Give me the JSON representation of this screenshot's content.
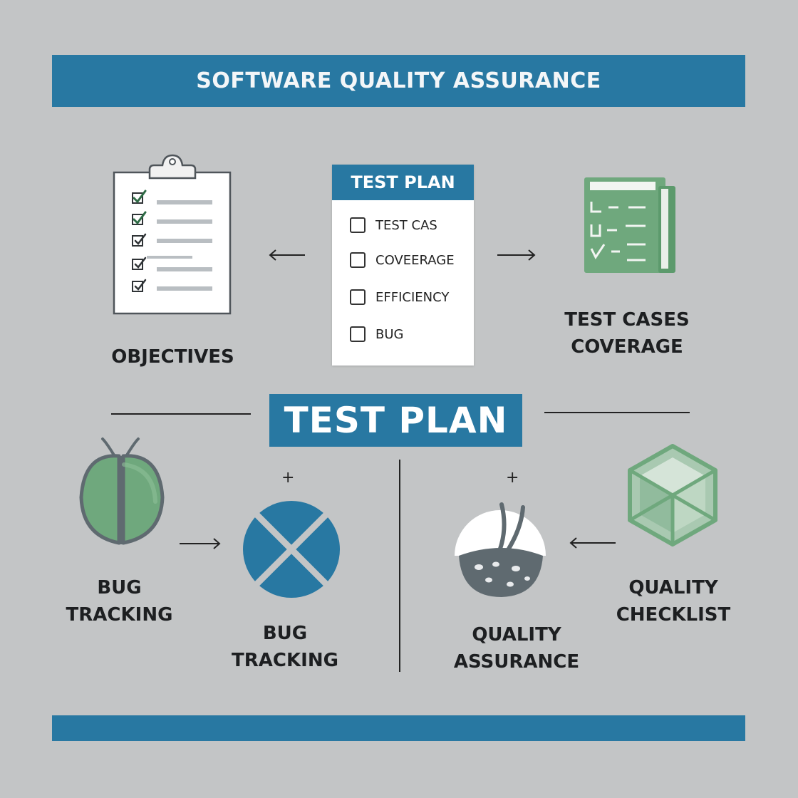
{
  "header": {
    "title": "SOFTWARE QUALITY ASSURANCE"
  },
  "test_plan_card": {
    "title": "TEST PLAN",
    "items": [
      "TEST CAS",
      "COVEERAGE",
      "EFFICIENCY",
      "BUG"
    ]
  },
  "center": {
    "title": "TEST PLAN"
  },
  "nodes": {
    "objectives": "OBJECTIVES",
    "test_cases_line1": "TEST CASES",
    "test_cases_line2": "COVERAGE",
    "bug_left_line1": "BUG",
    "bug_left_line2": "TRACKING",
    "bug_right_line1": "BUG",
    "bug_right_line2": "TRACKING",
    "qa_line1": "QUALITY",
    "qa_line2": "ASSURANCE",
    "checklist_line1": "QUALITY",
    "checklist_line2": "CHECKLIST"
  },
  "plus_sign": "+",
  "colors": {
    "background": "#c3c5c6",
    "brand_blue": "#2878a2",
    "accent_green": "#6fa87d",
    "dark_gray": "#5f6a70"
  },
  "icons": [
    "clipboard-checklist-icon",
    "green-ledger-icon",
    "green-beetle-icon",
    "blue-cross-circle-icon",
    "quality-bug-icon",
    "green-cube-icon"
  ]
}
